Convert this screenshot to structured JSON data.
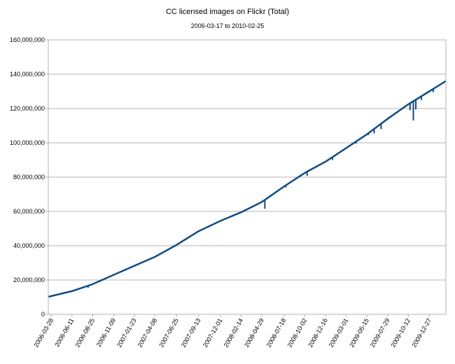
{
  "chart_data": {
    "type": "line",
    "title": "CC licensed images on Flickr (Total)",
    "subtitle": "2006-03-17 to 2010-02-25",
    "xlabel": "",
    "ylabel": "",
    "x_range": [
      "2006-03-17",
      "2010-02-25"
    ],
    "ylim": [
      0,
      160000000
    ],
    "y_ticks": [
      "0",
      "20,000,000",
      "40,000,000",
      "60,000,000",
      "80,000,000",
      "100,000,000",
      "120,000,000",
      "140,000,000",
      "160,000,000"
    ],
    "x_ticks": [
      "2006-03-28",
      "2006-06-11",
      "2006-08-25",
      "2006-11-09",
      "2007-01-23",
      "2007-04-08",
      "2007-06-25",
      "2007-09-13",
      "2007-12-01",
      "2008-02-14",
      "2008-04-29",
      "2008-07-18",
      "2008-10-02",
      "2008-12-16",
      "2009-03-01",
      "2009-05-15",
      "2009-07-29",
      "2009-10-12",
      "2009-12-27"
    ],
    "grid": "horizontal",
    "line_color": "#0f4c86",
    "series": [
      {
        "x": [
          "2006-03-17",
          "2006-06-11",
          "2006-08-25",
          "2006-11-09",
          "2007-01-23",
          "2007-04-08",
          "2007-06-25",
          "2007-09-13",
          "2007-12-01",
          "2008-02-14",
          "2008-04-29",
          "2008-07-18",
          "2008-10-02",
          "2008-12-16",
          "2009-03-01",
          "2009-05-15",
          "2009-07-29",
          "2009-10-12",
          "2009-12-27",
          "2010-02-25"
        ],
        "values": [
          10200000,
          13500000,
          17600000,
          23000000,
          28300000,
          33500000,
          40500000,
          48500000,
          54500000,
          59500000,
          65500000,
          74500000,
          82500000,
          89000000,
          97000000,
          105000000,
          114000000,
          122500000,
          130000000,
          136000000
        ]
      }
    ],
    "dips": [
      {
        "x": "2006-08-08",
        "value": 15500000
      },
      {
        "x": "2007-10-05",
        "value": 50000000
      },
      {
        "x": "2008-05-10",
        "value": 61500000
      },
      {
        "x": "2008-07-25",
        "value": 74000000
      },
      {
        "x": "2008-10-10",
        "value": 80800000
      },
      {
        "x": "2009-01-10",
        "value": 90000000
      },
      {
        "x": "2009-04-05",
        "value": 99500000
      },
      {
        "x": "2009-05-20",
        "value": 104500000
      },
      {
        "x": "2009-06-10",
        "value": 105500000
      },
      {
        "x": "2009-07-05",
        "value": 108000000
      },
      {
        "x": "2009-10-18",
        "value": 119000000
      },
      {
        "x": "2009-10-30",
        "value": 113000000
      },
      {
        "x": "2009-11-08",
        "value": 119500000
      },
      {
        "x": "2009-11-28",
        "value": 125000000
      },
      {
        "x": "2010-01-10",
        "value": 129500000
      }
    ]
  }
}
